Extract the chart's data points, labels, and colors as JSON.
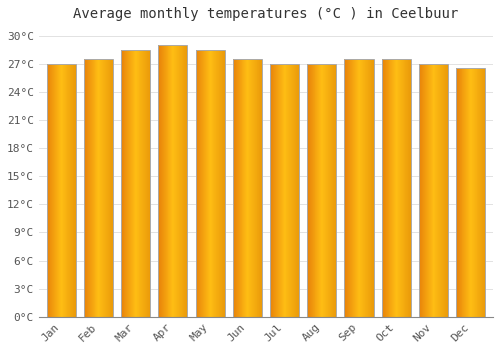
{
  "title": "Average monthly temperatures (°C ) in Ceelbuur",
  "months": [
    "Jan",
    "Feb",
    "Mar",
    "Apr",
    "May",
    "Jun",
    "Jul",
    "Aug",
    "Sep",
    "Oct",
    "Nov",
    "Dec"
  ],
  "values": [
    27.0,
    27.5,
    28.5,
    29.0,
    28.5,
    27.5,
    27.0,
    27.0,
    27.5,
    27.5,
    27.0,
    26.5
  ],
  "bar_color_left": "#E8820A",
  "bar_color_mid": "#FFBF00",
  "bar_color_right": "#F09010",
  "bar_edge_color": "#AAAAAA",
  "background_color": "#FFFFFF",
  "plot_bg_color": "#FFFFFF",
  "grid_color": "#DDDDDD",
  "ylim": [
    0,
    31
  ],
  "yticks": [
    0,
    3,
    6,
    9,
    12,
    15,
    18,
    21,
    24,
    27,
    30
  ],
  "ytick_labels": [
    "0°C",
    "3°C",
    "6°C",
    "9°C",
    "12°C",
    "15°C",
    "18°C",
    "21°C",
    "24°C",
    "27°C",
    "30°C"
  ],
  "title_fontsize": 10,
  "tick_fontsize": 8,
  "font_family": "monospace"
}
